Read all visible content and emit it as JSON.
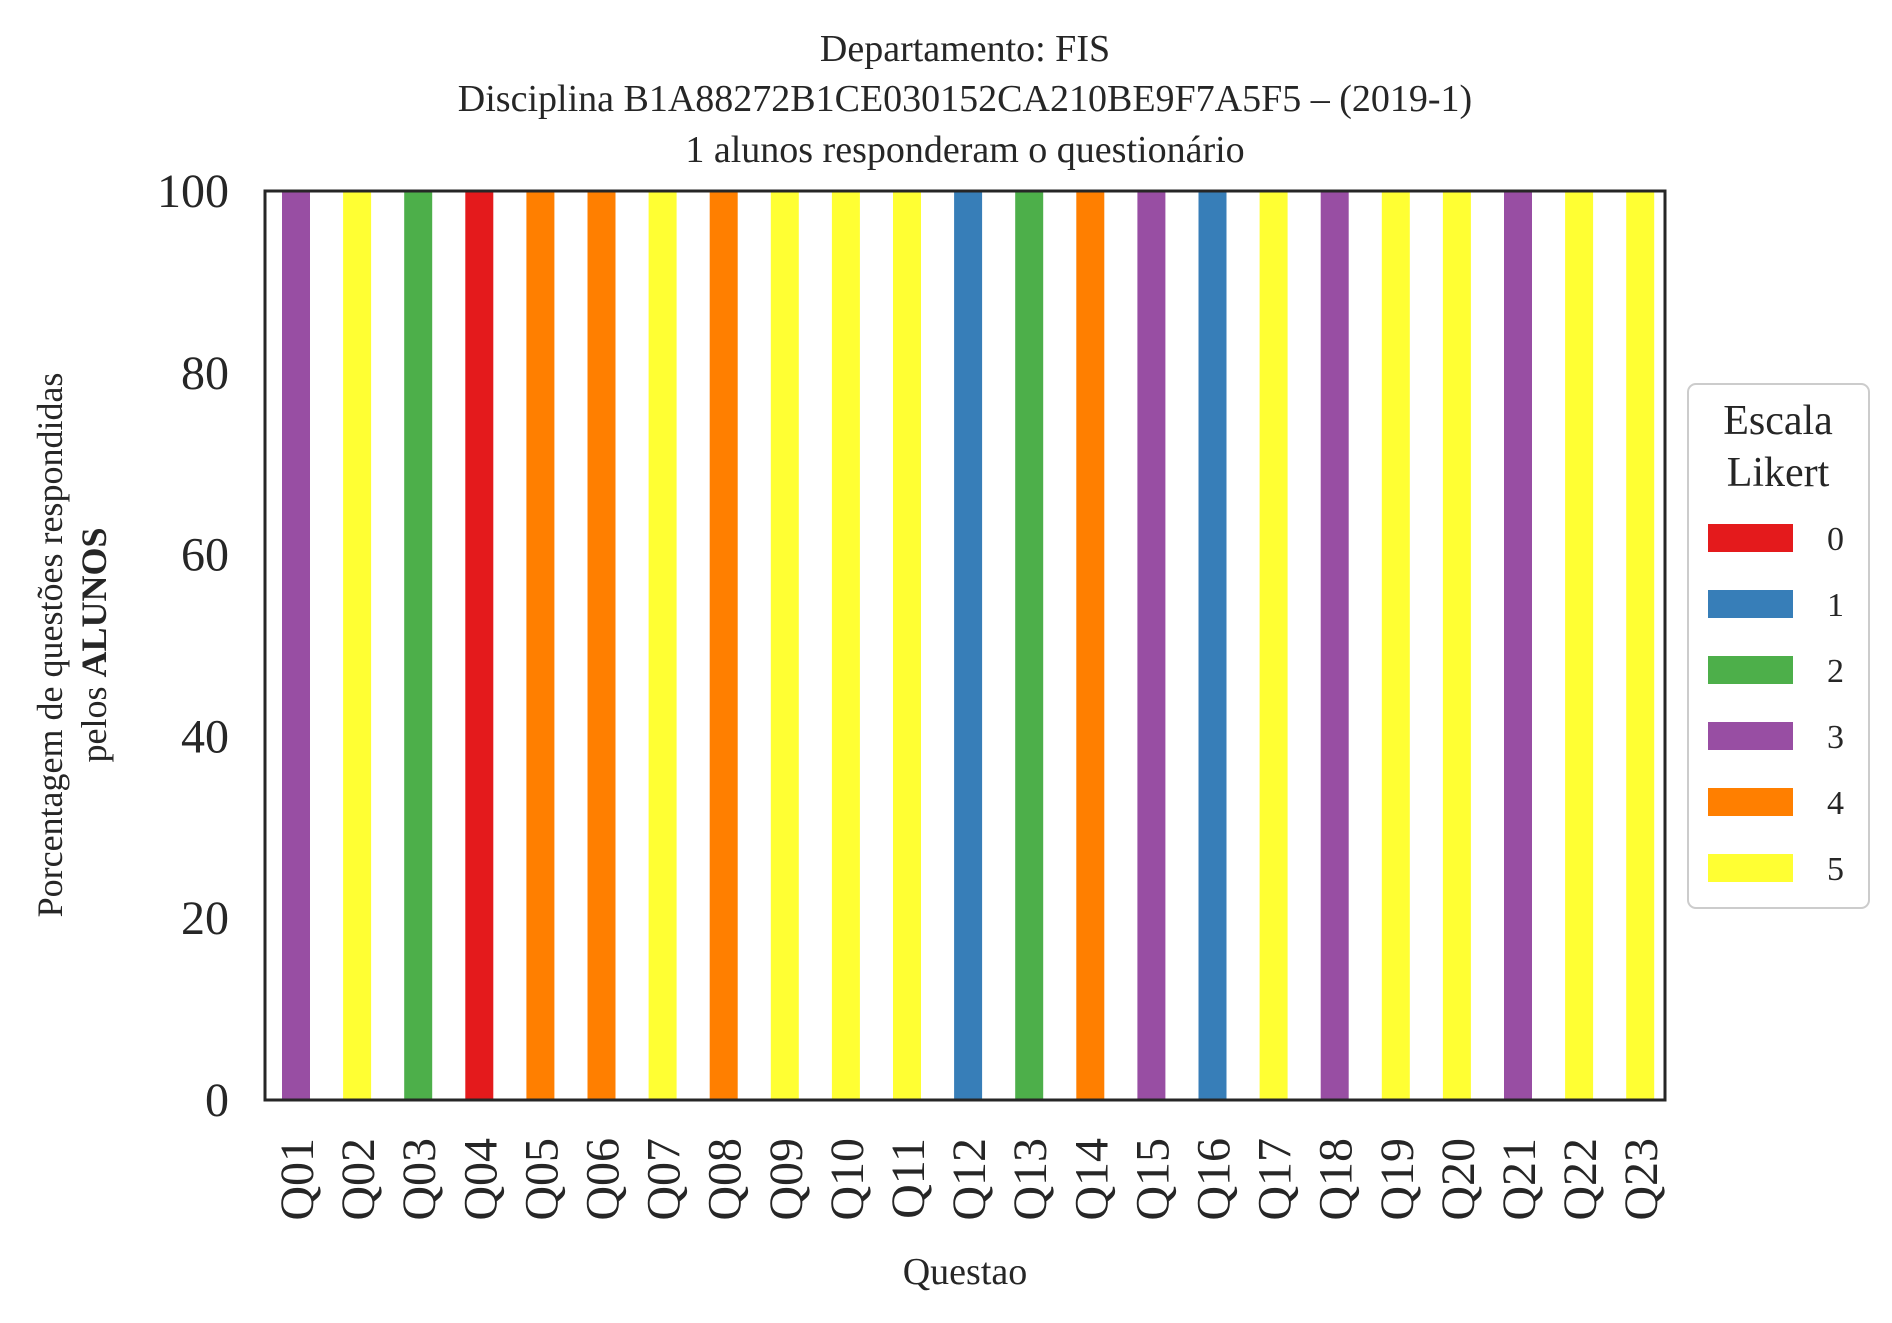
{
  "chart_data": {
    "type": "bar",
    "stacked": true,
    "title_lines": [
      "Departamento: FIS",
      "Disciplina B1A88272B1CE030152CA210BE9F7A5F5 – (2019-1)",
      "1 alunos responderam o questionário"
    ],
    "xlabel": "Questao",
    "ylabel_line1": "Porcentagem de questões respondidas",
    "ylabel_line2_prefix": "pelos ",
    "ylabel_line2_bold": "ALUNOS",
    "ylim": [
      0,
      100
    ],
    "yticks": [
      "0",
      "20",
      "40",
      "60",
      "80",
      "100"
    ],
    "categories": [
      "Q01",
      "Q02",
      "Q03",
      "Q04",
      "Q05",
      "Q06",
      "Q07",
      "Q08",
      "Q09",
      "Q10",
      "Q11",
      "Q12",
      "Q13",
      "Q14",
      "Q15",
      "Q16",
      "Q17",
      "Q18",
      "Q19",
      "Q20",
      "Q21",
      "Q22",
      "Q23"
    ],
    "legend": {
      "title_lines": [
        "Escala",
        "Likert"
      ],
      "placement": "center-right-outside"
    },
    "series": [
      {
        "name": "0",
        "color": "#e41a1c",
        "values": [
          0,
          0,
          0,
          100,
          0,
          0,
          0,
          0,
          0,
          0,
          0,
          0,
          0,
          0,
          0,
          0,
          0,
          0,
          0,
          0,
          0,
          0,
          0
        ]
      },
      {
        "name": "1",
        "color": "#377eb8",
        "values": [
          0,
          0,
          0,
          0,
          0,
          0,
          0,
          0,
          0,
          0,
          0,
          100,
          0,
          0,
          0,
          100,
          0,
          0,
          0,
          0,
          0,
          0,
          0
        ]
      },
      {
        "name": "2",
        "color": "#4daf4a",
        "values": [
          0,
          0,
          100,
          0,
          0,
          0,
          0,
          0,
          0,
          0,
          0,
          0,
          100,
          0,
          0,
          0,
          0,
          0,
          0,
          0,
          0,
          0,
          0
        ]
      },
      {
        "name": "3",
        "color": "#984ea3",
        "values": [
          100,
          0,
          0,
          0,
          0,
          0,
          0,
          0,
          0,
          0,
          0,
          0,
          0,
          0,
          100,
          0,
          0,
          100,
          0,
          0,
          100,
          0,
          0
        ]
      },
      {
        "name": "4",
        "color": "#ff7f00",
        "values": [
          0,
          0,
          0,
          0,
          100,
          100,
          0,
          100,
          0,
          0,
          0,
          0,
          0,
          100,
          0,
          0,
          0,
          0,
          0,
          0,
          0,
          0,
          0
        ]
      },
      {
        "name": "5",
        "color": "#ffff33",
        "values": [
          0,
          100,
          0,
          0,
          0,
          0,
          100,
          0,
          100,
          100,
          100,
          0,
          0,
          0,
          0,
          0,
          100,
          0,
          100,
          100,
          0,
          100,
          100
        ]
      }
    ]
  }
}
